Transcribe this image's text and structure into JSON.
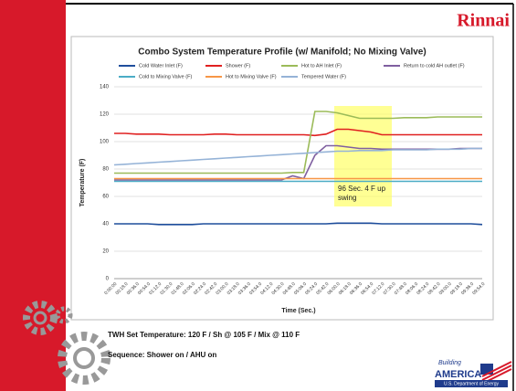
{
  "logo": "Rinnai",
  "chart_data": {
    "type": "line",
    "title": "Combo System Temperature Profile (w/ Manifold; No Mixing Valve)",
    "x_label": "Time (Sec.)",
    "y_label": "Temperature (F)",
    "categories": [
      "0:00:00",
      "00:18.0",
      "00:36.0",
      "00:54.0",
      "01:12.0",
      "01:30.0",
      "01:48.0",
      "02:06.0",
      "02:24.0",
      "02:42.0",
      "03:00.0",
      "03:18.0",
      "03:36.0",
      "03:54.0",
      "04:12.0",
      "04:30.0",
      "04:48.0",
      "05:06.0",
      "05:24.0",
      "05:42.0",
      "06:00.0",
      "06:18.0",
      "06:36.0",
      "06:54.0",
      "07:12.0",
      "07:30.0",
      "07:48.0",
      "08:06.0",
      "08:24.0",
      "08:42.0",
      "09:00.0",
      "09:18.0",
      "09:36.0",
      "09:54.0"
    ],
    "series": [
      {
        "name": "Cold Water Inlet (F)",
        "color": "#1f4e9c",
        "values": [
          40,
          40,
          40,
          40,
          39.5,
          39.5,
          39.5,
          39.5,
          40,
          40,
          40,
          40,
          40,
          40,
          40,
          40,
          40,
          40,
          40,
          40,
          40.5,
          40.5,
          40.5,
          40.5,
          40,
          40,
          40,
          40,
          40,
          40,
          40,
          40,
          40,
          39.5
        ]
      },
      {
        "name": "Shower (F)",
        "color": "#e02020",
        "values": [
          106,
          106,
          105.5,
          105.5,
          105.5,
          105,
          105,
          105,
          105,
          105.5,
          105.5,
          105,
          105,
          105,
          105,
          105,
          105,
          105,
          104.5,
          105.5,
          109,
          109,
          108,
          107,
          105,
          105,
          105,
          105,
          105,
          105,
          105,
          105,
          105,
          105
        ]
      },
      {
        "name": "Hot to AH Inlet (F)",
        "color": "#9bbb59",
        "values": [
          77,
          77,
          77,
          77,
          77,
          77,
          77,
          77,
          77,
          77,
          77,
          77,
          77,
          77,
          77,
          77,
          77.5,
          77.5,
          122,
          122,
          121,
          119,
          117,
          117,
          117,
          117,
          117.5,
          117.5,
          117.5,
          118,
          118,
          118,
          118,
          118
        ]
      },
      {
        "name": "Return to cold AH outlet (F)",
        "color": "#7f5fa0",
        "values": [
          72,
          72,
          72,
          72,
          72,
          72,
          72,
          72,
          72,
          72,
          72,
          72,
          72,
          72,
          72,
          72,
          75,
          73,
          90,
          97,
          97,
          96,
          95,
          95,
          94.5,
          94.5,
          94.5,
          94.5,
          94.5,
          94.5,
          94.5,
          95,
          95,
          95
        ]
      },
      {
        "name": "Cold to Mixing Valve (F)",
        "color": "#4bacc6",
        "values": [
          71,
          71,
          71,
          71,
          71,
          71,
          71,
          71,
          71,
          71,
          71,
          71,
          71,
          71,
          71,
          71,
          71,
          71,
          71,
          71,
          71,
          71,
          71,
          71,
          71,
          71,
          71,
          71,
          71,
          71,
          71,
          71,
          71,
          71
        ]
      },
      {
        "name": "Hot to Mixing Valve (F)",
        "color": "#f79646",
        "values": [
          73,
          73,
          73,
          73,
          73,
          73,
          73,
          73,
          73,
          73,
          73,
          73,
          73,
          73,
          73,
          73,
          73,
          73,
          73,
          73,
          73,
          73,
          73,
          73,
          73,
          73,
          73,
          73,
          73,
          73,
          73,
          73,
          73,
          73
        ]
      },
      {
        "name": "Tempered Water (F)",
        "color": "#95b3d7",
        "values": [
          83,
          83.5,
          84,
          84.5,
          85,
          85.5,
          86,
          86.5,
          87,
          87.5,
          88,
          88.5,
          89,
          89.5,
          90,
          90.5,
          91,
          91.5,
          92,
          92.5,
          93,
          93,
          93.5,
          93.5,
          93.5,
          94,
          94,
          94,
          94,
          94.5,
          94.5,
          94.5,
          95,
          95
        ]
      }
    ],
    "ylim": [
      0,
      140
    ],
    "yticks": [
      0,
      20,
      40,
      60,
      80,
      100,
      120,
      140
    ],
    "grid": true,
    "annotation": "96 Sec. 4 F up swing"
  },
  "notes": [
    "TWH Set Temperature: 120 F / Sh @ 105 F / Mix @ 110 F",
    "Sequence: Shower on / AHU on"
  ],
  "badge": {
    "script": "Building",
    "name": "AMERICA",
    "agency": "U.S. Department of Energy"
  }
}
